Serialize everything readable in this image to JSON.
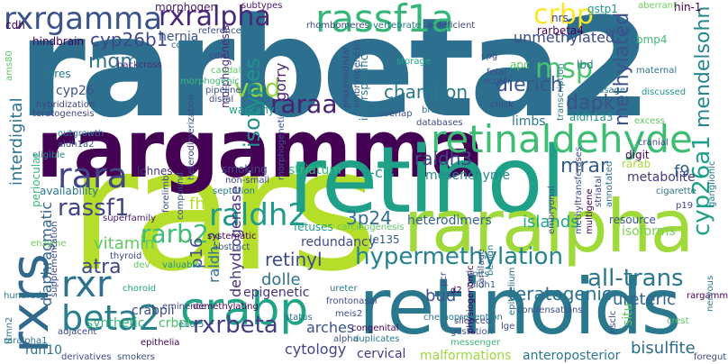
{
  "words": [
    {
      "text": "rarbeta2",
      "color": "#2c6f8e"
    },
    {
      "text": "rars",
      "color": "#b5de2b"
    },
    {
      "text": "rargamma",
      "color": "#440154"
    },
    {
      "text": "retinol",
      "color": "#1fa187"
    },
    {
      "text": "retinoids",
      "color": "#2a788e"
    },
    {
      "text": "raralpha",
      "color": "#9fda3a"
    },
    {
      "text": "rxrs",
      "color": "#31688e"
    },
    {
      "text": "retinaldehyde",
      "color": "#3dbc74"
    },
    {
      "text": "rassf1a",
      "color": "#35b779"
    },
    {
      "text": "crabp",
      "color": "#20a486"
    },
    {
      "text": "rxrgamma",
      "color": "#3b528b"
    },
    {
      "text": "rxralpha",
      "color": "#482878"
    },
    {
      "text": "crbp",
      "color": "#fde725"
    },
    {
      "text": "cyp26b1",
      "color": "#3e4989"
    },
    {
      "text": "raldh2",
      "color": "#1f9a8a"
    },
    {
      "text": "rara",
      "color": "#404688"
    },
    {
      "text": "hypermethylation",
      "color": "#26828e"
    },
    {
      "text": "all-trans",
      "color": "#2a788e"
    },
    {
      "text": "beta2",
      "color": "#277f8e"
    },
    {
      "text": "rxr",
      "color": "#2d718e"
    },
    {
      "text": "rarb2",
      "color": "#3fbc73"
    },
    {
      "text": "rassf1",
      "color": "#414487"
    },
    {
      "text": "raraa",
      "color": "#482173"
    },
    {
      "text": "dierich",
      "color": "#38588c"
    },
    {
      "text": "dapk",
      "color": "#3b528b"
    },
    {
      "text": "mrar",
      "color": "#365c8d"
    },
    {
      "text": "raldh3",
      "color": "#3f4788"
    },
    {
      "text": "3p24",
      "color": "#2e6e8e"
    },
    {
      "text": "atra",
      "color": "#404688"
    },
    {
      "text": "chambon",
      "color": "#2a788e"
    },
    {
      "text": "mgmt",
      "color": "#2d708e"
    },
    {
      "text": "unmethylated",
      "color": "#3e4989"
    },
    {
      "text": "msp",
      "color": "#4ac16d"
    },
    {
      "text": "vad",
      "color": "#8ed645"
    },
    {
      "text": "isotypes",
      "color": "#21918c"
    },
    {
      "text": "gorry",
      "color": "#482475"
    },
    {
      "text": "methylated",
      "color": "#3b528b"
    },
    {
      "text": "mendelsohn",
      "color": "#24878e"
    },
    {
      "text": "cyp26a1",
      "color": "#1fa088"
    },
    {
      "text": "f9",
      "color": "#34618d"
    },
    {
      "text": "teratogenic",
      "color": "#2c728e"
    },
    {
      "text": "bud",
      "color": "#3b528b"
    },
    {
      "text": "ureteric",
      "color": "#32648e"
    },
    {
      "text": "rxrbeta",
      "color": "#433e85"
    },
    {
      "text": "crabpii",
      "color": "#3e4989"
    },
    {
      "text": "synthetic",
      "color": "#3aba76"
    },
    {
      "text": "crbpi",
      "color": "#4ac16d"
    },
    {
      "text": "rdh10",
      "color": "#2c728e"
    },
    {
      "text": "cytology",
      "color": "#404688"
    },
    {
      "text": "malformations",
      "color": "#9dd93b"
    },
    {
      "text": "anteroposterior",
      "color": "#2a788e"
    },
    {
      "text": "cervical",
      "color": "#443a83"
    },
    {
      "text": "bisulfite",
      "color": "#2e6d8e"
    },
    {
      "text": "retinyl",
      "color": "#3e4989"
    },
    {
      "text": "dolle",
      "color": "#2c728e"
    },
    {
      "text": "epigenetic",
      "color": "#46337f"
    },
    {
      "text": "arches",
      "color": "#3b528b"
    },
    {
      "text": "fhit",
      "color": "#b5de2b"
    },
    {
      "text": "vitamin",
      "color": "#5ec962"
    },
    {
      "text": "p16",
      "color": "#3e4a89"
    },
    {
      "text": "diaphragmatic",
      "color": "#33638d"
    },
    {
      "text": "raldh-2",
      "color": "#2d708e"
    },
    {
      "text": "dehydrogenase",
      "color": "#46307e"
    },
    {
      "text": "9-cis",
      "color": "#1f968b"
    },
    {
      "text": "mesenchyme",
      "color": "#23898e"
    },
    {
      "text": "heterodimers",
      "color": "#34618d"
    },
    {
      "text": "islands",
      "color": "#22a884"
    },
    {
      "text": "metabolite",
      "color": "#443983"
    },
    {
      "text": "interdigital",
      "color": "#2c738e"
    },
    {
      "text": "periocular",
      "color": "#35b779"
    },
    {
      "text": "availability",
      "color": "#2a788e"
    },
    {
      "text": "hernia",
      "color": "#39568c"
    },
    {
      "text": "morphogenesis",
      "color": "#4e2d7e"
    },
    {
      "text": "warkany",
      "color": "#1f9e89"
    },
    {
      "text": "smoking",
      "color": "#3f4788"
    },
    {
      "text": "striatum",
      "color": "#35b779"
    },
    {
      "text": "redundancy",
      "color": "#3e4989"
    },
    {
      "text": "le135",
      "color": "#35608d"
    },
    {
      "text": "lohnes",
      "color": "#46327e"
    },
    {
      "text": "cyp26",
      "color": "#3b528b"
    },
    {
      "text": "rares",
      "color": "#2a788e"
    },
    {
      "text": "hindbrain",
      "color": "#440154"
    },
    {
      "text": "morphogen",
      "color": "#481a6c"
    },
    {
      "text": "rarbeta4",
      "color": "#440154"
    },
    {
      "text": "gstp1",
      "color": "#1f968b"
    },
    {
      "text": "nrs",
      "color": "#3e4989"
    },
    {
      "text": "lbd",
      "color": "#2a788e"
    },
    {
      "text": "apc",
      "color": "#5ec962"
    },
    {
      "text": "digit",
      "color": "#440154"
    },
    {
      "text": "rarab",
      "color": "#a8db34"
    },
    {
      "text": "resource",
      "color": "#39568c"
    },
    {
      "text": "isoforms",
      "color": "#7ad151"
    },
    {
      "text": "cdh",
      "color": "#440154"
    },
    {
      "text": "bmp4",
      "color": "#3fbc73"
    },
    {
      "text": "hin-1",
      "color": "#440154"
    },
    {
      "text": "aberrant",
      "color": "#6ece58"
    },
    {
      "text": "subtypes",
      "color": "#481467"
    },
    {
      "text": "vertebrate",
      "color": "#2a788e"
    },
    {
      "text": "a-deficient",
      "color": "#3e4989"
    },
    {
      "text": "rhombomeres",
      "color": "#3e4989"
    },
    {
      "text": "reference",
      "color": "#3b528b"
    },
    {
      "text": "backcross",
      "color": "#472c7a"
    },
    {
      "text": "cdh1",
      "color": "#404688"
    },
    {
      "text": "morphogenic",
      "color": "#3aba76"
    },
    {
      "text": "teratogenesis",
      "color": "#3e4989"
    },
    {
      "text": "outgrowth",
      "color": "#2a788e"
    },
    {
      "text": "aldh1a2",
      "color": "#3b528b"
    },
    {
      "text": "eligible",
      "color": "#25848e"
    },
    {
      "text": "hybridization",
      "color": "#414487"
    },
    {
      "text": "forelimb",
      "color": "#3e4989"
    },
    {
      "text": "compound",
      "color": "#3b528b"
    },
    {
      "text": "non-small",
      "color": "#3e4989"
    },
    {
      "text": "superfamily",
      "color": "#481a6c"
    },
    {
      "text": "septation",
      "color": "#2a788e"
    },
    {
      "text": "systematic",
      "color": "#440154"
    },
    {
      "text": "abstract",
      "color": "#3b528b"
    },
    {
      "text": "enzyme",
      "color": "#6ece58"
    },
    {
      "text": "thyroid",
      "color": "#3e4989"
    },
    {
      "text": "valuable",
      "color": "#21918c"
    },
    {
      "text": "choroid",
      "color": "#22a884"
    },
    {
      "text": "eminence",
      "color": "#3e4989"
    },
    {
      "text": "demethylating",
      "color": "#440154"
    },
    {
      "text": "e10.5",
      "color": "#2a788e"
    },
    {
      "text": "derivatives",
      "color": "#404688"
    },
    {
      "text": "smokers",
      "color": "#3b528b"
    },
    {
      "text": "epithelia",
      "color": "#440154"
    },
    {
      "text": "adjacent",
      "color": "#3e4989"
    },
    {
      "text": "hundreds",
      "color": "#2a788e"
    },
    {
      "text": "raralpha1",
      "color": "#2c728e"
    },
    {
      "text": "fetuses",
      "color": "#1fa088"
    },
    {
      "text": "carcinogenesis",
      "color": "#5ec962"
    },
    {
      "text": "frontonasal",
      "color": "#3e4989"
    },
    {
      "text": "ureter",
      "color": "#2a788e"
    },
    {
      "text": "status",
      "color": "#2c728e"
    },
    {
      "text": "congenital",
      "color": "#440154"
    },
    {
      "text": "alpha",
      "color": "#3b528b"
    },
    {
      "text": "duplicates",
      "color": "#2a788e"
    },
    {
      "text": "messenger",
      "color": "#3aba76"
    },
    {
      "text": "gestation",
      "color": "#3b528b"
    },
    {
      "text": "silenced",
      "color": "#3e4989"
    },
    {
      "text": "lge",
      "color": "#3e4989"
    },
    {
      "text": "condensations",
      "color": "#3b528b"
    },
    {
      "text": "chemoprevention",
      "color": "#2a788e"
    },
    {
      "text": "databases",
      "color": "#3e4989"
    },
    {
      "text": "branching",
      "color": "#2c728e"
    },
    {
      "text": "overlap",
      "color": "#3b528b"
    },
    {
      "text": "storage",
      "color": "#22a884"
    },
    {
      "text": "fetal",
      "color": "#3e4989"
    },
    {
      "text": "ocular",
      "color": "#3b528b"
    },
    {
      "text": "usage",
      "color": "#2a788e"
    },
    {
      "text": "discussed",
      "color": "#21918c"
    },
    {
      "text": "maternal",
      "color": "#2c728e"
    },
    {
      "text": "panel",
      "color": "#3b528b"
    },
    {
      "text": "excess",
      "color": "#5ec962"
    },
    {
      "text": "cranial",
      "color": "#3e4989"
    },
    {
      "text": "cigarette",
      "color": "#2c728e"
    },
    {
      "text": "ganglionic",
      "color": "#2a788e"
    },
    {
      "text": "p19",
      "color": "#3e4989"
    },
    {
      "text": "crest",
      "color": "#5ec962"
    },
    {
      "text": "rargamma2",
      "color": "#440154"
    },
    {
      "text": "foregut",
      "color": "#3e4989"
    },
    {
      "text": "units",
      "color": "#2c728e"
    },
    {
      "text": "raldh1",
      "color": "#3b528b"
    },
    {
      "text": "d2",
      "color": "#440154"
    },
    {
      "text": "pcr",
      "color": "#3e4989"
    },
    {
      "text": "ttmn2",
      "color": "#2a788e"
    },
    {
      "text": "dev",
      "color": "#5ec962"
    },
    {
      "text": "chick",
      "color": "#3e4989"
    },
    {
      "text": "limbs",
      "color": "#2a788e"
    },
    {
      "text": "cpg",
      "color": "#3b528b"
    },
    {
      "text": "aldh1a3",
      "color": "#21918c"
    },
    {
      "text": "pipeline",
      "color": "#3b528b"
    },
    {
      "text": "distal",
      "color": "#3e4989"
    },
    {
      "text": "caudal",
      "color": "#5ec962"
    },
    {
      "text": "cdnas",
      "color": "#2c728e"
    },
    {
      "text": "ams80",
      "color": "#5ec962"
    },
    {
      "text": "interspecific",
      "color": "#2a788e"
    },
    {
      "text": "proximodistal",
      "color": "#3e4989"
    },
    {
      "text": "embryogenesis",
      "color": "#3b528b"
    },
    {
      "text": "heterodimerization",
      "color": "#3e4989"
    },
    {
      "text": "morphogenetic",
      "color": "#3b528b"
    },
    {
      "text": "transcription",
      "color": "#2a788e"
    },
    {
      "text": "methyltransferases",
      "color": "#3e4989"
    },
    {
      "text": "embryonal",
      "color": "#3b528b"
    },
    {
      "text": "multigene",
      "color": "#440154"
    },
    {
      "text": "striatal",
      "color": "#3e4989"
    },
    {
      "text": "annotated",
      "color": "#2c728e"
    },
    {
      "text": "physiogenomic",
      "color": "#440154"
    },
    {
      "text": "cartilage",
      "color": "#3b528b"
    },
    {
      "text": "benign",
      "color": "#2a788e"
    },
    {
      "text": "nsclc",
      "color": "#3e4989"
    },
    {
      "text": "epithelium",
      "color": "#2c728e"
    },
    {
      "text": "meis2",
      "color": "#3b528b"
    },
    {
      "text": "situ",
      "color": "#5ec962"
    },
    {
      "text": "supplementation",
      "color": "#3e4989"
    },
    {
      "text": "nervous",
      "color": "#2a788e"
    }
  ]
}
